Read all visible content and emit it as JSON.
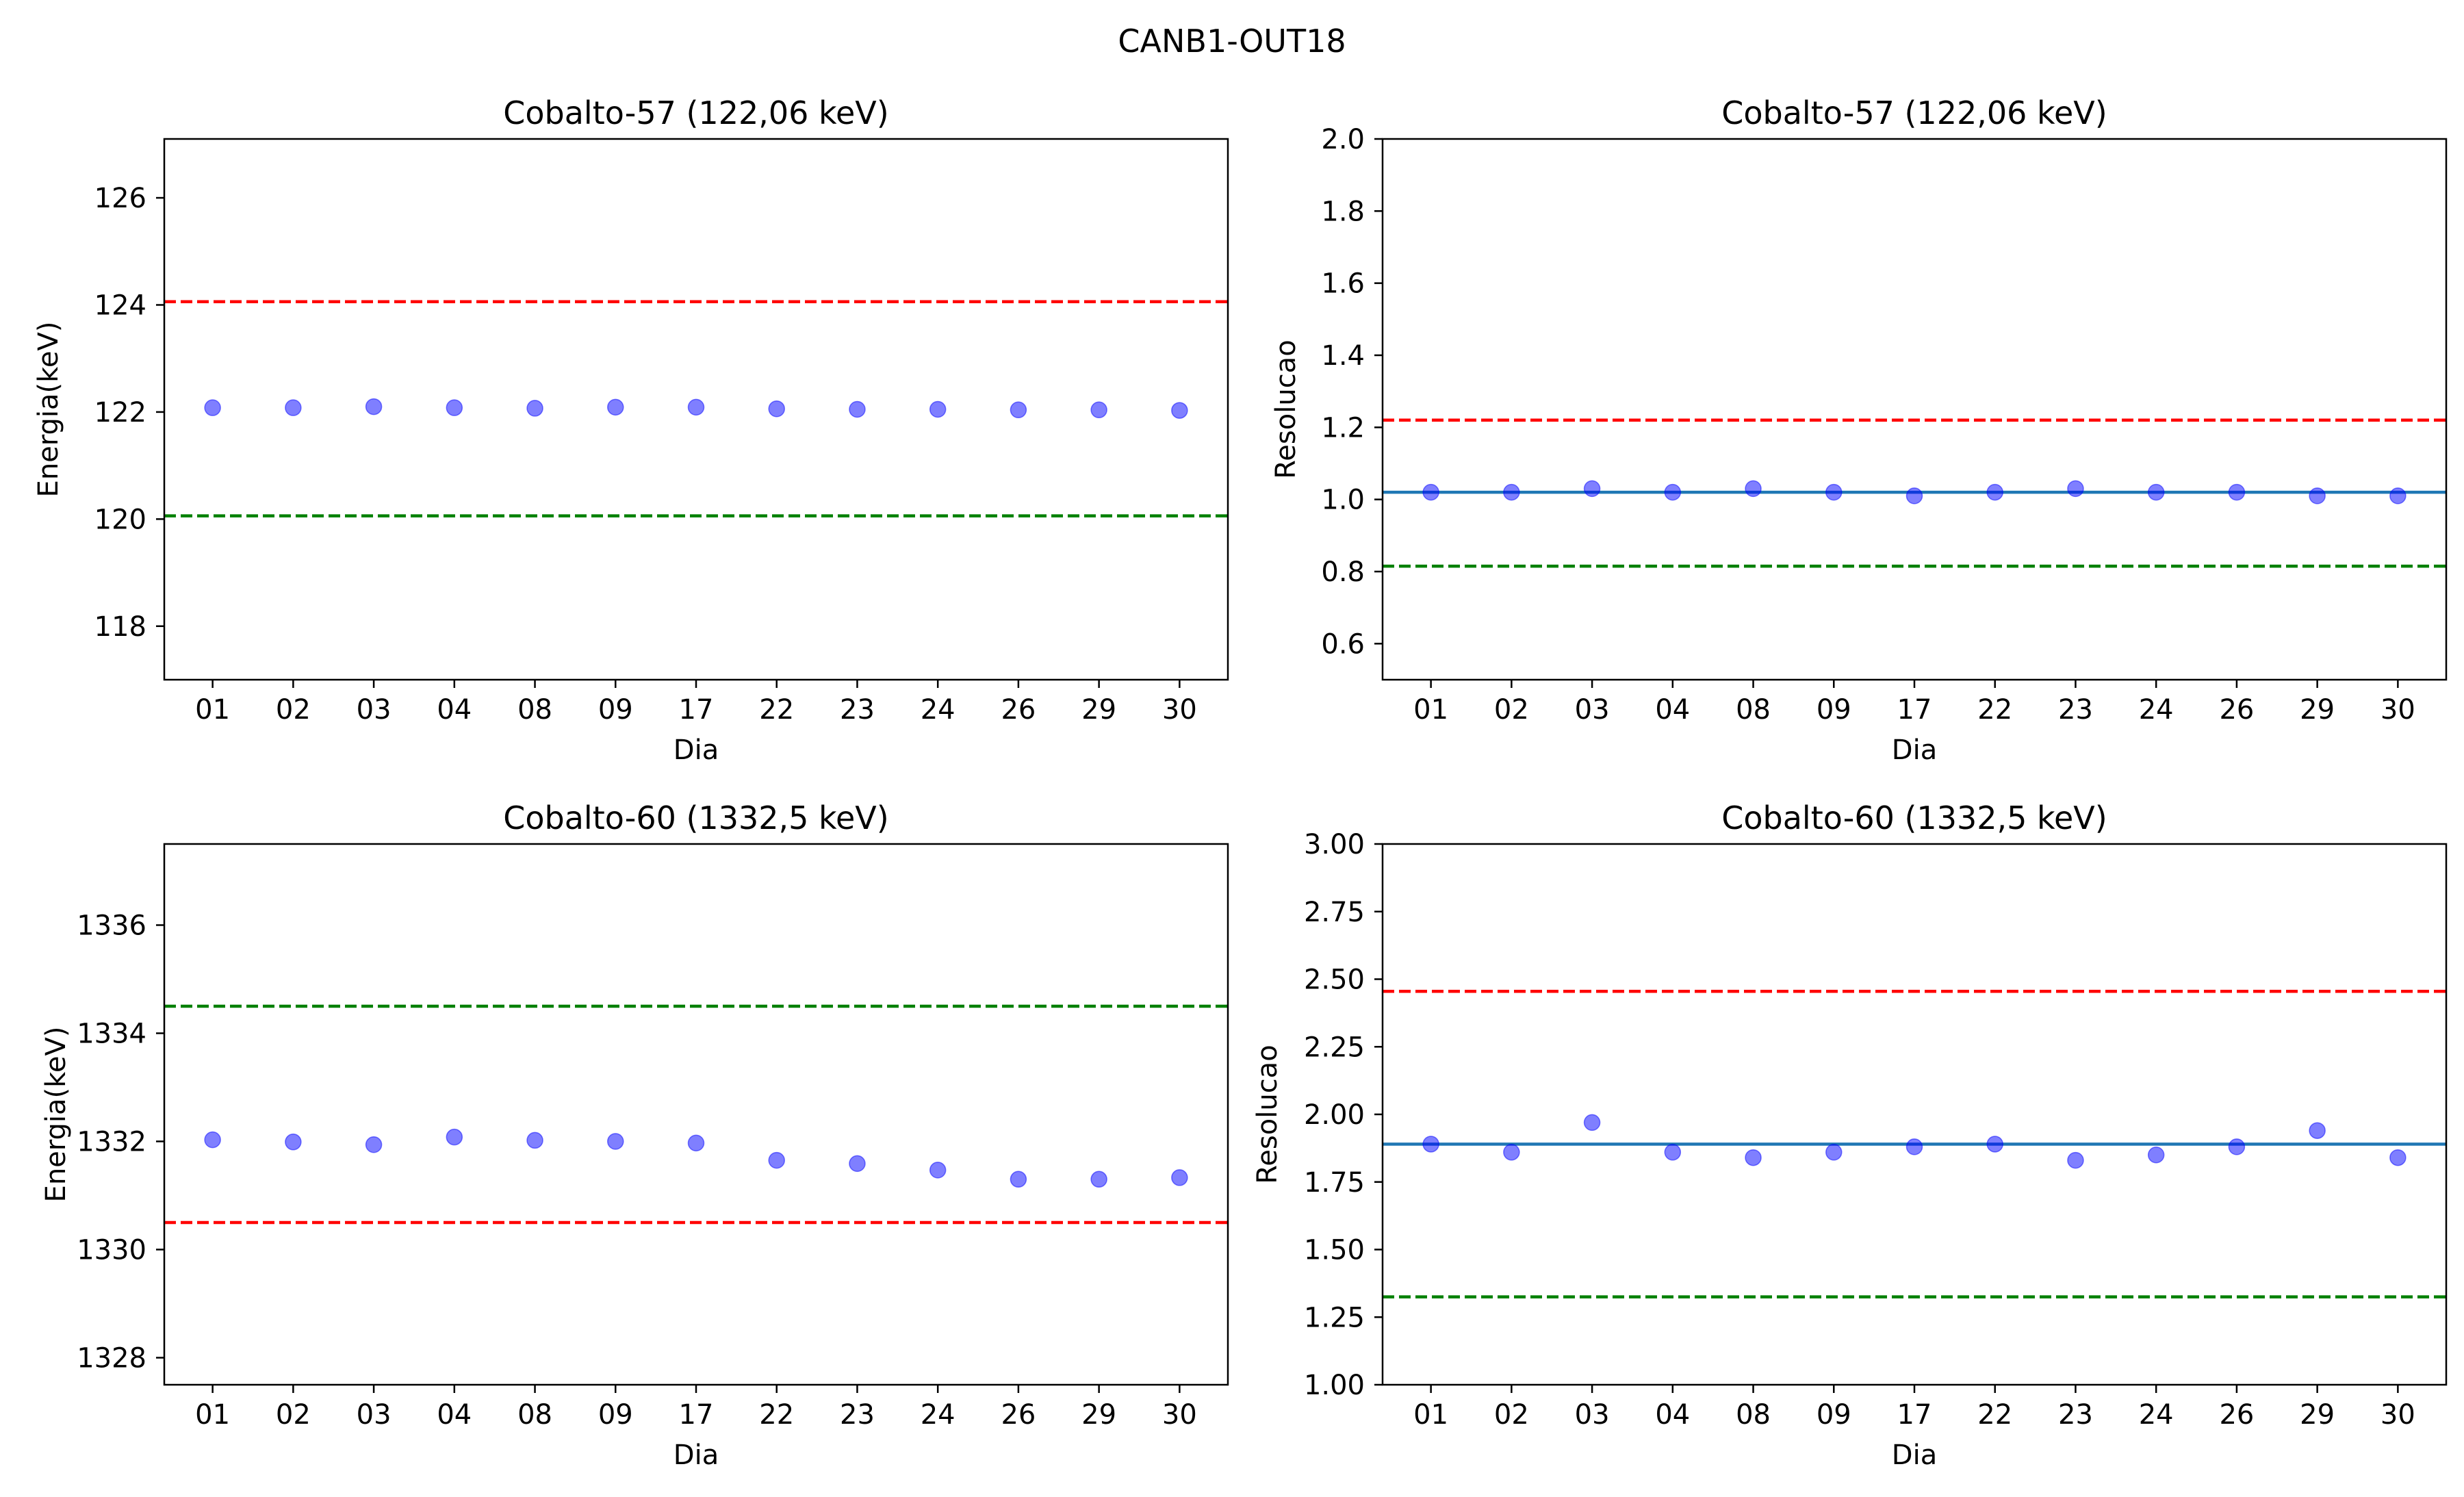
{
  "figure": {
    "title": "CANB1-OUT18"
  },
  "chart_data": [
    {
      "type": "scatter",
      "title": "Cobalto-57 (122,06 keV)",
      "xlabel": "Dia",
      "ylabel": "Energia(keV)",
      "categories": [
        "01",
        "02",
        "03",
        "04",
        "08",
        "09",
        "17",
        "22",
        "23",
        "24",
        "26",
        "29",
        "30"
      ],
      "ylim": [
        117.0,
        127.1
      ],
      "yticks": [
        118,
        120,
        122,
        124,
        126
      ],
      "ytick_labels": [
        "118",
        "120",
        "122",
        "124",
        "126"
      ],
      "series": [
        {
          "values": [
            122.08,
            122.08,
            122.1,
            122.08,
            122.07,
            122.09,
            122.09,
            122.06,
            122.05,
            122.05,
            122.04,
            122.04,
            122.03
          ],
          "color": "#0000ff"
        }
      ],
      "reference_lines": [
        {
          "y": 124.06,
          "color": "#ff0000",
          "style": "dashed"
        },
        {
          "y": 120.06,
          "color": "#008000",
          "style": "dashed"
        }
      ],
      "grid": false
    },
    {
      "type": "scatter",
      "title": "Cobalto-57 (122,06 keV)",
      "xlabel": "Dia",
      "ylabel": "Resolucao",
      "categories": [
        "01",
        "02",
        "03",
        "04",
        "08",
        "09",
        "17",
        "22",
        "23",
        "24",
        "26",
        "29",
        "30"
      ],
      "ylim": [
        0.5,
        2.0
      ],
      "yticks": [
        0.6,
        0.8,
        1.0,
        1.2,
        1.4,
        1.6,
        1.8,
        2.0
      ],
      "ytick_labels": [
        "0.6",
        "0.8",
        "1.0",
        "1.2",
        "1.4",
        "1.6",
        "1.8",
        "2.0"
      ],
      "series": [
        {
          "values": [
            1.02,
            1.02,
            1.03,
            1.02,
            1.03,
            1.02,
            1.01,
            1.02,
            1.03,
            1.02,
            1.02,
            1.01,
            1.01
          ],
          "color": "#0000ff"
        }
      ],
      "reference_lines": [
        {
          "y": 1.22,
          "color": "#ff0000",
          "style": "dashed"
        },
        {
          "y": 1.02,
          "color": "#1f77b4",
          "style": "solid"
        },
        {
          "y": 0.815,
          "color": "#008000",
          "style": "dashed"
        }
      ],
      "grid": false
    },
    {
      "type": "scatter",
      "title": "Cobalto-60 (1332,5 keV)",
      "xlabel": "Dia",
      "ylabel": "Energia(keV)",
      "categories": [
        "01",
        "02",
        "03",
        "04",
        "08",
        "09",
        "17",
        "22",
        "23",
        "24",
        "26",
        "29",
        "30"
      ],
      "ylim": [
        1327.5,
        1337.5
      ],
      "yticks": [
        1328,
        1330,
        1332,
        1334,
        1336
      ],
      "ytick_labels": [
        "1328",
        "1330",
        "1332",
        "1334",
        "1336"
      ],
      "series": [
        {
          "values": [
            1332.03,
            1331.99,
            1331.94,
            1332.08,
            1332.02,
            1332.0,
            1331.97,
            1331.65,
            1331.59,
            1331.47,
            1331.3,
            1331.3,
            1331.33
          ],
          "color": "#0000ff"
        }
      ],
      "reference_lines": [
        {
          "y": 1334.5,
          "color": "#008000",
          "style": "dashed"
        },
        {
          "y": 1330.5,
          "color": "#ff0000",
          "style": "dashed"
        }
      ],
      "grid": false
    },
    {
      "type": "scatter",
      "title": "Cobalto-60 (1332,5 keV)",
      "xlabel": "Dia",
      "ylabel": "Resolucao",
      "categories": [
        "01",
        "02",
        "03",
        "04",
        "08",
        "09",
        "17",
        "22",
        "23",
        "24",
        "26",
        "29",
        "30"
      ],
      "ylim": [
        1.0,
        3.0
      ],
      "yticks": [
        1.0,
        1.25,
        1.5,
        1.75,
        2.0,
        2.25,
        2.5,
        2.75,
        3.0
      ],
      "ytick_labels": [
        "1.00",
        "1.25",
        "1.50",
        "1.75",
        "2.00",
        "2.25",
        "2.50",
        "2.75",
        "3.00"
      ],
      "series": [
        {
          "values": [
            1.89,
            1.86,
            1.97,
            1.86,
            1.84,
            1.86,
            1.88,
            1.89,
            1.83,
            1.85,
            1.88,
            1.94,
            1.84
          ],
          "color": "#0000ff"
        }
      ],
      "reference_lines": [
        {
          "y": 2.455,
          "color": "#ff0000",
          "style": "dashed"
        },
        {
          "y": 1.89,
          "color": "#1f77b4",
          "style": "solid"
        },
        {
          "y": 1.325,
          "color": "#008000",
          "style": "dashed"
        }
      ],
      "grid": false
    }
  ]
}
